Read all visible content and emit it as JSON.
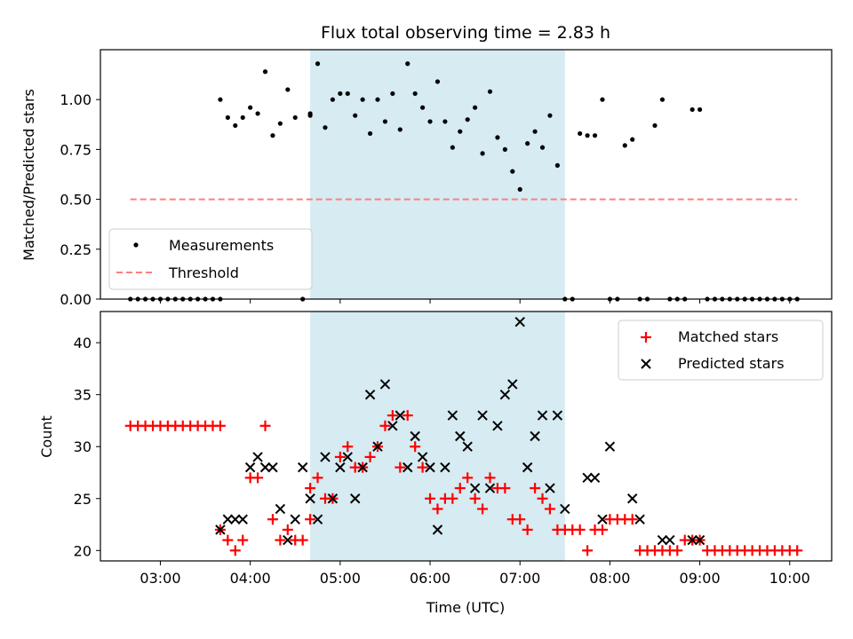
{
  "chart_data": [
    {
      "type": "scatter",
      "title": "Flux total observing time = 2.83 h",
      "xlabel": "",
      "ylabel": "Matched/Predicted stars",
      "xlim": [
        "02:20",
        "10:28"
      ],
      "ylim": [
        0,
        1.25
      ],
      "yticks": [
        "0.00",
        "0.25",
        "0.50",
        "0.75",
        "1.00"
      ],
      "highlight": {
        "from": "04:40",
        "to": "07:30",
        "color": "#add8e6"
      },
      "legend": {
        "position": "lower-left",
        "entries": [
          "Measurements",
          "Threshold"
        ]
      },
      "series": [
        {
          "name": "Measurements",
          "marker": "dot",
          "color": "#000000",
          "x": [
            "02:40",
            "02:45",
            "02:50",
            "02:55",
            "03:00",
            "03:05",
            "03:10",
            "03:15",
            "03:20",
            "03:25",
            "03:30",
            "03:35",
            "03:40",
            "03:40",
            "03:45",
            "03:50",
            "03:55",
            "04:00",
            "04:05",
            "04:10",
            "04:15",
            "04:20",
            "04:25",
            "04:30",
            "04:35",
            "04:40",
            "04:40",
            "04:45",
            "04:50",
            "04:55",
            "05:00",
            "05:05",
            "05:10",
            "05:15",
            "05:20",
            "05:25",
            "05:30",
            "05:35",
            "05:40",
            "05:45",
            "05:50",
            "05:55",
            "06:00",
            "06:05",
            "06:10",
            "06:15",
            "06:20",
            "06:25",
            "06:30",
            "06:35",
            "06:40",
            "06:45",
            "06:50",
            "06:55",
            "07:00",
            "07:05",
            "07:10",
            "07:15",
            "07:20",
            "07:25",
            "07:30",
            "07:35",
            "07:40",
            "07:45",
            "07:50",
            "07:55",
            "08:00",
            "08:05",
            "08:10",
            "08:15",
            "08:20",
            "08:25",
            "08:30",
            "08:35",
            "08:40",
            "08:45",
            "08:50",
            "08:55",
            "09:00",
            "09:05",
            "09:10",
            "09:15",
            "09:20",
            "09:25",
            "09:30",
            "09:35",
            "09:40",
            "09:45",
            "09:50",
            "09:55",
            "10:00",
            "10:05"
          ],
          "y": [
            0,
            0,
            0,
            0,
            0,
            0,
            0,
            0,
            0,
            0,
            0,
            0,
            0,
            1.0,
            0.91,
            0.87,
            0.91,
            0.96,
            0.93,
            1.14,
            0.82,
            0.88,
            1.05,
            0.91,
            0,
            0.93,
            0.92,
            1.18,
            0.86,
            1.0,
            1.03,
            1.03,
            0.92,
            1.0,
            0.83,
            1.0,
            0.89,
            1.03,
            0.85,
            1.18,
            1.03,
            0.96,
            0.89,
            1.09,
            0.89,
            0.76,
            0.84,
            0.9,
            0.96,
            0.73,
            1.04,
            0.81,
            0.75,
            0.64,
            0.55,
            0.78,
            0.84,
            0.76,
            0.92,
            0.67,
            0,
            0,
            0.83,
            0.82,
            0.82,
            1.0,
            0,
            0,
            0.77,
            0.8,
            0,
            0,
            0.87,
            1.0,
            0,
            0,
            0,
            0.95,
            0.95,
            0,
            0,
            0,
            0,
            0,
            0,
            0,
            0,
            0,
            0,
            0,
            0,
            0
          ]
        },
        {
          "name": "Threshold",
          "type": "line",
          "style": "dashed",
          "color": "#ff7f7f",
          "x": [
            "02:40",
            "10:05"
          ],
          "y": [
            0.5,
            0.5
          ]
        }
      ]
    },
    {
      "type": "scatter",
      "title": "",
      "xlabel": "Time (UTC)",
      "ylabel": "Count",
      "xlim": [
        "02:20",
        "10:28"
      ],
      "ylim": [
        19,
        43
      ],
      "yticks": [
        "20",
        "25",
        "30",
        "35",
        "40"
      ],
      "xticks": [
        "03:00",
        "04:00",
        "05:00",
        "06:00",
        "07:00",
        "08:00",
        "09:00",
        "10:00"
      ],
      "highlight": {
        "from": "04:40",
        "to": "07:30",
        "color": "#add8e6"
      },
      "legend": {
        "position": "top-right",
        "entries": [
          "Matched stars",
          "Predicted stars"
        ]
      },
      "series": [
        {
          "name": "Matched stars",
          "marker": "plus",
          "color": "#ff0000",
          "x": [
            "02:40",
            "02:45",
            "02:50",
            "02:55",
            "03:00",
            "03:05",
            "03:10",
            "03:15",
            "03:20",
            "03:25",
            "03:30",
            "03:35",
            "03:40",
            "03:40",
            "03:45",
            "03:50",
            "03:55",
            "04:00",
            "04:05",
            "04:10",
            "04:15",
            "04:20",
            "04:25",
            "04:30",
            "04:35",
            "04:40",
            "04:40",
            "04:45",
            "04:50",
            "04:55",
            "05:00",
            "05:05",
            "05:10",
            "05:15",
            "05:20",
            "05:25",
            "05:30",
            "05:35",
            "05:40",
            "05:45",
            "05:50",
            "05:55",
            "06:00",
            "06:05",
            "06:10",
            "06:15",
            "06:20",
            "06:25",
            "06:30",
            "06:35",
            "06:40",
            "06:45",
            "06:50",
            "06:55",
            "07:00",
            "07:05",
            "07:10",
            "07:15",
            "07:20",
            "07:25",
            "07:30",
            "07:35",
            "07:40",
            "07:45",
            "07:50",
            "07:55",
            "08:00",
            "08:05",
            "08:10",
            "08:15",
            "08:20",
            "08:25",
            "08:30",
            "08:35",
            "08:40",
            "08:45",
            "08:50",
            "08:55",
            "09:00",
            "09:05",
            "09:10",
            "09:15",
            "09:20",
            "09:25",
            "09:30",
            "09:35",
            "09:40",
            "09:45",
            "09:50",
            "09:55",
            "10:00",
            "10:05"
          ],
          "y": [
            32,
            32,
            32,
            32,
            32,
            32,
            32,
            32,
            32,
            32,
            32,
            32,
            32,
            22,
            21,
            20,
            21,
            27,
            27,
            32,
            23,
            21,
            22,
            21,
            21,
            26,
            23,
            27,
            25,
            25,
            29,
            30,
            28,
            28,
            29,
            30,
            32,
            33,
            28,
            33,
            30,
            28,
            25,
            24,
            25,
            25,
            26,
            27,
            25,
            24,
            27,
            26,
            26,
            23,
            23,
            22,
            26,
            25,
            24,
            22,
            22,
            22,
            22,
            20,
            22,
            22,
            23,
            23,
            23,
            23,
            20,
            20,
            20,
            20,
            20,
            20,
            21,
            21,
            21,
            20,
            20,
            20,
            20,
            20,
            20,
            20,
            20,
            20,
            20,
            20,
            20,
            20
          ]
        },
        {
          "name": "Predicted stars",
          "marker": "x",
          "color": "#000000",
          "x": [
            "03:40",
            "03:45",
            "03:50",
            "03:55",
            "04:00",
            "04:05",
            "04:10",
            "04:15",
            "04:20",
            "04:25",
            "04:30",
            "04:35",
            "04:40",
            "04:45",
            "04:50",
            "04:55",
            "05:00",
            "05:05",
            "05:10",
            "05:15",
            "05:20",
            "05:25",
            "05:30",
            "05:35",
            "05:40",
            "05:45",
            "05:50",
            "05:55",
            "06:00",
            "06:05",
            "06:10",
            "06:15",
            "06:20",
            "06:25",
            "06:30",
            "06:35",
            "06:40",
            "06:45",
            "06:50",
            "06:55",
            "07:00",
            "07:05",
            "07:10",
            "07:15",
            "07:20",
            "07:25",
            "07:30",
            "07:45",
            "07:50",
            "07:55",
            "08:00",
            "08:15",
            "08:20",
            "08:35",
            "08:40",
            "08:55",
            "09:00"
          ],
          "y": [
            22,
            23,
            23,
            23,
            28,
            29,
            28,
            28,
            24,
            21,
            23,
            28,
            25,
            23,
            29,
            25,
            28,
            29,
            25,
            28,
            35,
            30,
            36,
            32,
            33,
            28,
            31,
            29,
            28,
            22,
            28,
            33,
            31,
            30,
            26,
            33,
            26,
            32,
            35,
            36,
            42,
            28,
            31,
            33,
            26,
            33,
            24,
            27,
            27,
            23,
            30,
            25,
            23,
            21,
            21,
            21,
            21
          ]
        }
      ]
    }
  ]
}
